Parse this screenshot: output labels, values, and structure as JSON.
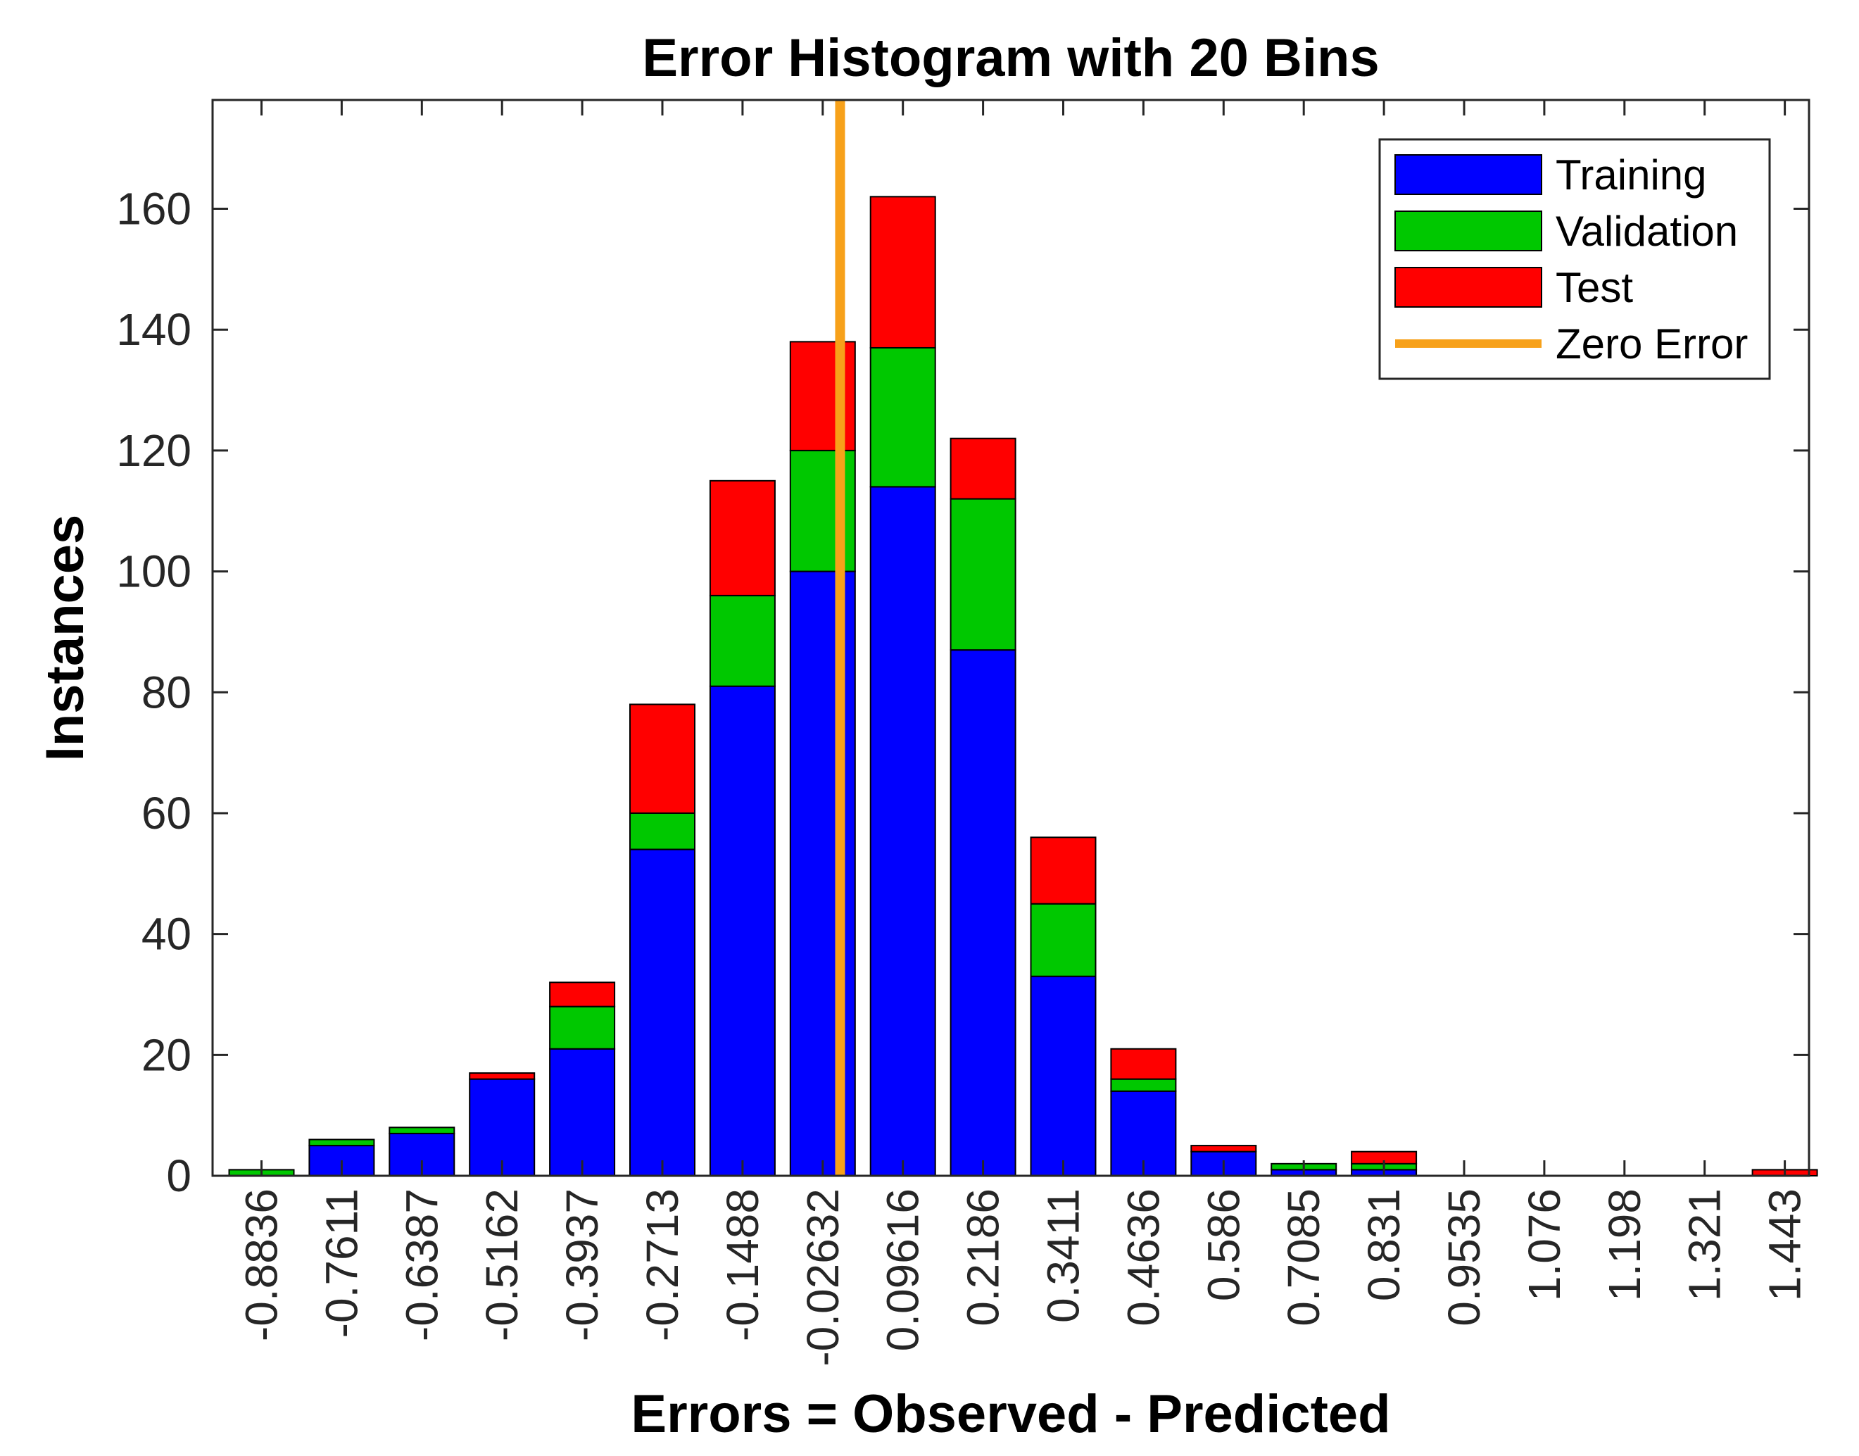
{
  "chart_data": {
    "type": "bar",
    "stacked": true,
    "title": "Error Histogram with 20 Bins",
    "xlabel": "Errors = Observed - Predicted",
    "ylabel": "Instances",
    "categories": [
      "-0.8836",
      "-0.7611",
      "-0.6387",
      "-0.5162",
      "-0.3937",
      "-0.2713",
      "-0.1488",
      "-0.02632",
      "0.09616",
      "0.2186",
      "0.3411",
      "0.4636",
      "0.586",
      "0.7085",
      "0.831",
      "0.9535",
      "1.076",
      "1.198",
      "1.321",
      "1.443"
    ],
    "series": [
      {
        "name": "Training",
        "color": "#0000ff",
        "values": [
          0,
          5,
          7,
          16,
          21,
          54,
          81,
          100,
          114,
          87,
          33,
          14,
          4,
          1,
          1,
          0,
          0,
          0,
          0,
          0
        ]
      },
      {
        "name": "Validation",
        "color": "#00c800",
        "values": [
          1,
          1,
          1,
          0,
          7,
          6,
          15,
          20,
          23,
          25,
          12,
          2,
          0,
          1,
          1,
          0,
          0,
          0,
          0,
          0
        ]
      },
      {
        "name": "Test",
        "color": "#ff0000",
        "values": [
          0,
          0,
          0,
          1,
          4,
          18,
          19,
          18,
          25,
          10,
          11,
          5,
          1,
          0,
          2,
          0,
          0,
          0,
          0,
          1
        ]
      }
    ],
    "reference_line": {
      "name": "Zero Error",
      "x": 0,
      "color": "#f7a11a"
    },
    "ylim": [
      0,
      178
    ],
    "yticks": [
      0,
      20,
      40,
      60,
      80,
      100,
      120,
      140,
      160
    ],
    "grid": false,
    "legend": "top-right"
  }
}
